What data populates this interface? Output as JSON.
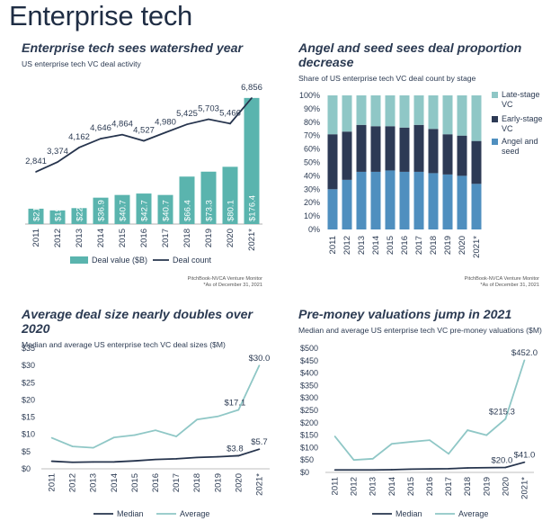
{
  "page": {
    "title": "Enterprise tech"
  },
  "chart_data": [
    {
      "type": "bar",
      "title": "Enterprise tech sees watershed year",
      "subtitle": "US enterprise tech VC deal activity",
      "categories": [
        "2011",
        "2012",
        "2013",
        "2014",
        "2015",
        "2016",
        "2017",
        "2018",
        "2019",
        "2020",
        "2021*"
      ],
      "series": [
        {
          "name": "Deal value ($B)",
          "type": "bar",
          "color": "#5ab4ae",
          "values": [
            21.5,
            19.1,
            22.3,
            36.9,
            40.7,
            42.7,
            40.7,
            66.4,
            73.3,
            80.1,
            176.4
          ],
          "labels": [
            "$21.5",
            "$19.1",
            "$22.3",
            "$36.9",
            "$40.7",
            "$42.7",
            "$40.7",
            "$66.4",
            "$73.3",
            "$80.1",
            "$176.4"
          ]
        },
        {
          "name": "Deal count",
          "type": "line",
          "color": "#26344d",
          "values": [
            2841,
            3374,
            4162,
            4646,
            4864,
            4527,
            4980,
            5425,
            5703,
            5466,
            6856
          ],
          "labels": [
            "2,841",
            "3,374",
            "4,162",
            "4,646",
            "4,864",
            "4,527",
            "4,980",
            "5,425",
            "5,703",
            "5,466",
            "6,856"
          ]
        }
      ],
      "y1lim": [
        0,
        180
      ],
      "y2lim": [
        0,
        7000
      ],
      "legend": "bottom",
      "source": [
        "PitchBook-NVCA Venture Monitor",
        "*As of December 31, 2021"
      ]
    },
    {
      "type": "bar",
      "stacked": true,
      "title": "Angel and seed sees deal proportion decrease",
      "subtitle": "Share of US enterprise tech VC deal count by stage",
      "categories": [
        "2011",
        "2012",
        "2013",
        "2014",
        "2015",
        "2016",
        "2017",
        "2018",
        "2019",
        "2020",
        "2021*"
      ],
      "series": [
        {
          "name": "Angel and seed",
          "color": "#4f8fbf",
          "values": [
            30,
            37,
            43,
            43,
            44,
            43,
            43,
            42,
            41,
            40,
            34
          ]
        },
        {
          "name": "Early-stage VC",
          "color": "#2d3a55",
          "values": [
            41,
            36,
            35,
            34,
            33,
            33,
            35,
            33,
            30,
            30,
            32
          ]
        },
        {
          "name": "Late-stage VC",
          "color": "#8fc7c6",
          "values": [
            29,
            27,
            22,
            23,
            23,
            24,
            22,
            25,
            29,
            30,
            34
          ]
        }
      ],
      "y_ticks": [
        "0%",
        "10%",
        "20%",
        "30%",
        "40%",
        "50%",
        "60%",
        "70%",
        "80%",
        "90%",
        "100%"
      ],
      "ylim": [
        0,
        100
      ],
      "legend_labels": [
        [
          "Late-stage",
          "VC"
        ],
        [
          "Early-stage",
          "VC"
        ],
        [
          "Angel and",
          "seed"
        ]
      ],
      "legend": "right",
      "source": [
        "PitchBook-NVCA Venture Monitor",
        "*As of December 31, 2021"
      ]
    },
    {
      "type": "line",
      "title": "Average deal size nearly doubles over 2020",
      "subtitle": "Median and average US enterprise tech VC deal sizes ($M)",
      "categories": [
        "2011",
        "2012",
        "2013",
        "2014",
        "2015",
        "2016",
        "2017",
        "2018",
        "2019",
        "2020",
        "2021*"
      ],
      "series": [
        {
          "name": "Median",
          "color": "#26344d",
          "values": [
            2.2,
            1.9,
            2.0,
            2.0,
            2.3,
            2.7,
            2.9,
            3.3,
            3.5,
            3.8,
            5.7
          ]
        },
        {
          "name": "Average",
          "color": "#8fc7c6",
          "values": [
            9.0,
            6.5,
            6.1,
            9.1,
            9.8,
            11.2,
            9.4,
            14.3,
            15.2,
            17.1,
            30.0
          ]
        }
      ],
      "point_labels": [
        {
          "series": 0,
          "index": 9,
          "text": "$3.8"
        },
        {
          "series": 0,
          "index": 10,
          "text": "$5.7"
        },
        {
          "series": 1,
          "index": 9,
          "text": "$17.1"
        },
        {
          "series": 1,
          "index": 10,
          "text": "$30.0"
        }
      ],
      "y_ticks": [
        "$0",
        "$5",
        "$10",
        "$15",
        "$20",
        "$25",
        "$30",
        "$35"
      ],
      "ylim": [
        0,
        35
      ],
      "legend": "bottom"
    },
    {
      "type": "line",
      "title": "Pre-money valuations jump in 2021",
      "subtitle": "Median and average US enterprise tech VC pre-money valuations ($M)",
      "categories": [
        "2011",
        "2012",
        "2013",
        "2014",
        "2015",
        "2016",
        "2017",
        "2018",
        "2019",
        "2020",
        "2021*"
      ],
      "series": [
        {
          "name": "Median",
          "color": "#26344d",
          "values": [
            10,
            10,
            10,
            11,
            13,
            14,
            15,
            18,
            19,
            20,
            41
          ]
        },
        {
          "name": "Average",
          "color": "#8fc7c6",
          "values": [
            145,
            50,
            55,
            115,
            123,
            130,
            75,
            170,
            150,
            215.3,
            452
          ]
        }
      ],
      "point_labels": [
        {
          "series": 0,
          "index": 9,
          "text": "$20.0"
        },
        {
          "series": 0,
          "index": 10,
          "text": "$41.0"
        },
        {
          "series": 1,
          "index": 9,
          "text": "$215.3"
        },
        {
          "series": 1,
          "index": 10,
          "text": "$452.0"
        }
      ],
      "y_ticks": [
        "$0",
        "$50",
        "$100",
        "$150",
        "$200",
        "$250",
        "$300",
        "$350",
        "$400",
        "$450",
        "$500"
      ],
      "ylim": [
        0,
        500
      ],
      "legend": "bottom"
    }
  ]
}
